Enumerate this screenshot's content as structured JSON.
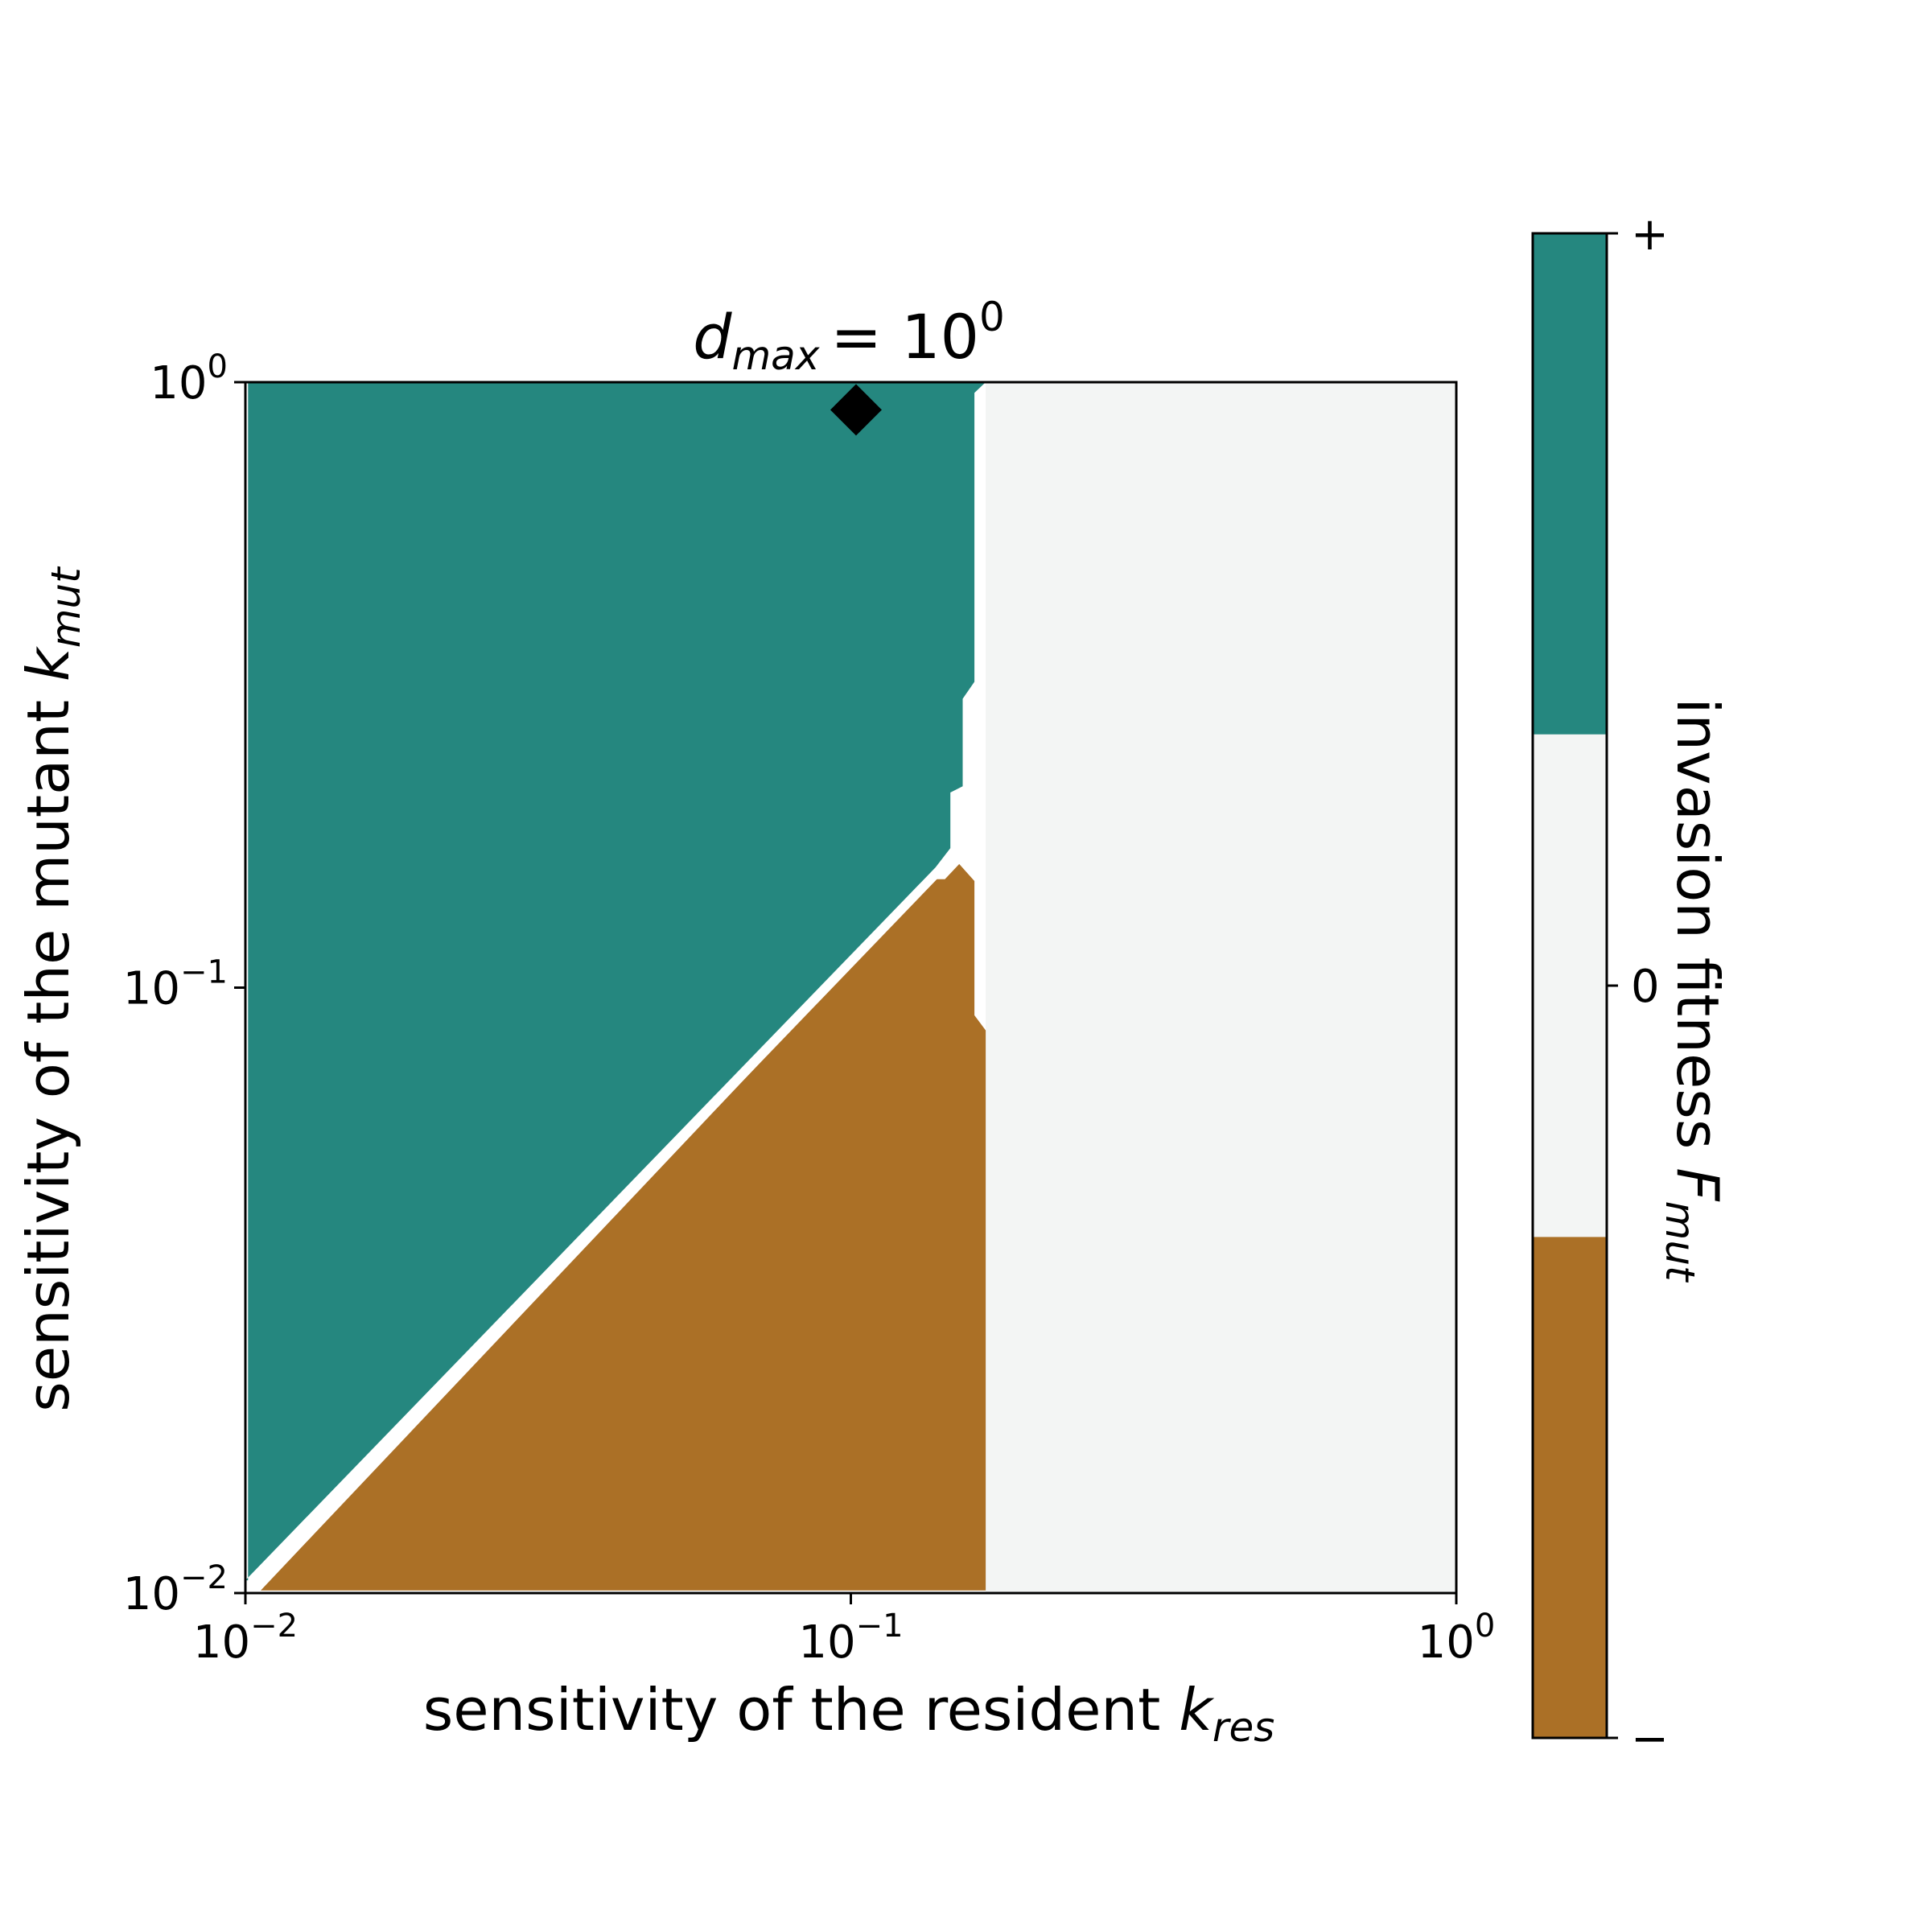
{
  "chart_data": {
    "type": "heatmap",
    "title": {
      "base": "d",
      "sub": "max",
      "rhs": "= 10",
      "sup": "0"
    },
    "xlabel": {
      "text": "sensitivity of the resident ",
      "var": "k",
      "sub": "res"
    },
    "ylabel": {
      "text": "sensitivity of the mutant ",
      "var": "k",
      "sub": "mut"
    },
    "x_scale": "log",
    "y_scale": "log",
    "xlim": [
      0.01,
      1
    ],
    "ylim": [
      0.01,
      1
    ],
    "x_ticks": [
      {
        "value": 0.01,
        "base": "10",
        "exp": "−2"
      },
      {
        "value": 0.1,
        "base": "10",
        "exp": "−1"
      },
      {
        "value": 1,
        "base": "10",
        "exp": "0"
      }
    ],
    "y_ticks": [
      {
        "value": 0.01,
        "base": "10",
        "exp": "−2"
      },
      {
        "value": 0.1,
        "base": "10",
        "exp": "−1"
      },
      {
        "value": 1,
        "base": "10",
        "exp": "0"
      }
    ],
    "grid": false,
    "regions": [
      {
        "name": "positive",
        "color": "#25877f",
        "polygon": [
          [
            0.0101,
            1.0
          ],
          [
            0.167,
            1.0
          ],
          [
            0.16,
            0.96
          ],
          [
            0.16,
            0.32
          ],
          [
            0.153,
            0.3
          ],
          [
            0.153,
            0.215
          ],
          [
            0.146,
            0.21
          ],
          [
            0.146,
            0.17
          ],
          [
            0.138,
            0.158
          ],
          [
            0.01,
            0.0105
          ],
          [
            0.0101,
            0.0105
          ]
        ]
      },
      {
        "name": "negative",
        "color": "#ab7026",
        "polygon": [
          [
            0.0106,
            0.0101
          ],
          [
            0.137,
            0.151
          ],
          [
            0.143,
            0.151
          ],
          [
            0.151,
            0.16
          ],
          [
            0.16,
            0.15
          ],
          [
            0.16,
            0.09
          ],
          [
            0.167,
            0.085
          ],
          [
            0.167,
            0.0101
          ]
        ]
      },
      {
        "name": "neutral",
        "color": "#f3f5f4",
        "polygon": [
          [
            0.167,
            1.0
          ],
          [
            1.0,
            1.0
          ],
          [
            1.0,
            0.01
          ],
          [
            0.167,
            0.01
          ]
        ]
      }
    ],
    "markers": [
      {
        "shape": "diamond",
        "color": "#000000",
        "x": 0.102,
        "y": 0.9
      }
    ],
    "colorbar": {
      "label": {
        "text": "invasion fitness ",
        "var": "F",
        "sub": "mut"
      },
      "segments": [
        {
          "from": 0,
          "to": 0.333,
          "color": "#ab7026"
        },
        {
          "from": 0.333,
          "to": 0.667,
          "color": "#f3f5f4"
        },
        {
          "from": 0.667,
          "to": 1,
          "color": "#25877f"
        }
      ],
      "ticks": [
        {
          "pos": 0,
          "label": "−"
        },
        {
          "pos": 0.5,
          "label": "0"
        },
        {
          "pos": 1,
          "label": "+"
        }
      ]
    }
  }
}
